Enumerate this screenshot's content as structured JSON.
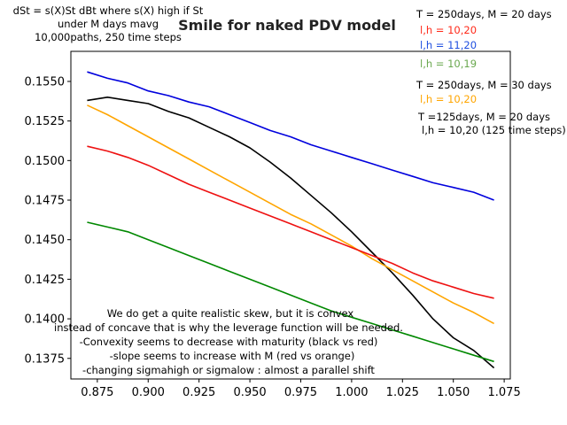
{
  "chart_data": {
    "type": "line",
    "title": "Smile for naked PDV model",
    "xlabel": "",
    "ylabel": "",
    "xlim": [
      0.862,
      1.078
    ],
    "ylim": [
      0.1362,
      0.1569
    ],
    "xticks": [
      "0.875",
      "0.900",
      "0.925",
      "0.950",
      "0.975",
      "1.000",
      "1.025",
      "1.050",
      "1.075"
    ],
    "yticks": [
      "0.1375",
      "0.1400",
      "0.1425",
      "0.1450",
      "0.1475",
      "0.1500",
      "0.1525",
      "0.1550"
    ],
    "grid": false,
    "header_note": [
      "dSt = s(X)St dBt where s(X) high if St",
      "under M days mavg",
      "10,000paths, 250 time steps"
    ],
    "annotations": [
      "We do get a quite realistic skew, but it is convex",
      "instead of concave that is why the leverage function will be needed.",
      "-Convexity seems to decrease with maturity (black vs red)",
      "-slope seems to increase with M (red vs orange)",
      "-changing sigmahigh or sigmalow : almost a parallel shift"
    ],
    "legend_entries": [
      {
        "text": "T = 250days, M = 20 days",
        "color": "#000000"
      },
      {
        "text": "l,h = 10,20",
        "color": "#ff2a1a"
      },
      {
        "text": "l,h = 11,20",
        "color": "#1f4fe0"
      },
      {
        "text": "l,h = 10,19",
        "color": "#6aa84f"
      },
      {
        "text": "T = 250days, M = 30 days",
        "color": "#000000"
      },
      {
        "text": "l,h = 10,20",
        "color": "#ffa500"
      },
      {
        "text": "T =125days, M = 20 days",
        "color": "#000000"
      },
      {
        "text": "l,h = 10,20 (125 time steps)",
        "color": "#000000"
      }
    ],
    "series": [
      {
        "color": "#0000dd",
        "x": [
          0.87,
          0.88,
          0.89,
          0.9,
          0.91,
          0.92,
          0.93,
          0.94,
          0.95,
          0.96,
          0.97,
          0.98,
          0.99,
          1.0,
          1.01,
          1.02,
          1.03,
          1.04,
          1.05,
          1.06,
          1.07
        ],
        "y": [
          0.1556,
          0.1552,
          0.1549,
          0.1544,
          0.1541,
          0.1537,
          0.1534,
          0.1529,
          0.1524,
          0.1519,
          0.1515,
          0.151,
          0.1506,
          0.1502,
          0.1498,
          0.1494,
          0.149,
          0.1486,
          0.1483,
          0.148,
          0.1475
        ]
      },
      {
        "color": "#000000",
        "x": [
          0.87,
          0.88,
          0.89,
          0.9,
          0.91,
          0.92,
          0.93,
          0.94,
          0.95,
          0.96,
          0.97,
          0.98,
          0.99,
          1.0,
          1.01,
          1.02,
          1.03,
          1.04,
          1.05,
          1.06,
          1.07
        ],
        "y": [
          0.1538,
          0.154,
          0.1538,
          0.1536,
          0.1531,
          0.1527,
          0.1521,
          0.1515,
          0.1508,
          0.1499,
          0.1489,
          0.1478,
          0.1467,
          0.1455,
          0.1442,
          0.1429,
          0.1415,
          0.14,
          0.1388,
          0.138,
          0.1369
        ]
      },
      {
        "color": "#ffa500",
        "x": [
          0.87,
          0.88,
          0.89,
          0.9,
          0.91,
          0.92,
          0.93,
          0.94,
          0.95,
          0.96,
          0.97,
          0.98,
          0.99,
          1.0,
          1.01,
          1.02,
          1.03,
          1.04,
          1.05,
          1.06,
          1.07
        ],
        "y": [
          0.1535,
          0.1529,
          0.1522,
          0.1515,
          0.1508,
          0.1501,
          0.1494,
          0.1487,
          0.148,
          0.1473,
          0.1466,
          0.146,
          0.1453,
          0.1446,
          0.1438,
          0.1431,
          0.1424,
          0.1417,
          0.141,
          0.1404,
          0.1397
        ]
      },
      {
        "color": "#ee1111",
        "x": [
          0.87,
          0.88,
          0.89,
          0.9,
          0.91,
          0.92,
          0.93,
          0.94,
          0.95,
          0.96,
          0.97,
          0.98,
          0.99,
          1.0,
          1.01,
          1.02,
          1.03,
          1.04,
          1.05,
          1.06,
          1.07
        ],
        "y": [
          0.1509,
          0.1506,
          0.1502,
          0.1497,
          0.1491,
          0.1485,
          0.148,
          0.1475,
          0.147,
          0.1465,
          0.146,
          0.1455,
          0.145,
          0.1445,
          0.144,
          0.1435,
          0.1429,
          0.1424,
          0.142,
          0.1416,
          0.1413
        ]
      },
      {
        "color": "#008800",
        "x": [
          0.87,
          0.88,
          0.89,
          0.9,
          0.91,
          0.92,
          0.93,
          0.94,
          0.95,
          0.96,
          0.97,
          0.98,
          0.99,
          1.0,
          1.01,
          1.02,
          1.03,
          1.04,
          1.05,
          1.06,
          1.07
        ],
        "y": [
          0.1461,
          0.1458,
          0.1455,
          0.145,
          0.1445,
          0.144,
          0.1435,
          0.143,
          0.1425,
          0.142,
          0.1415,
          0.141,
          0.1405,
          0.1401,
          0.1397,
          0.1393,
          0.1389,
          0.1385,
          0.1381,
          0.1377,
          0.1373
        ]
      }
    ]
  }
}
